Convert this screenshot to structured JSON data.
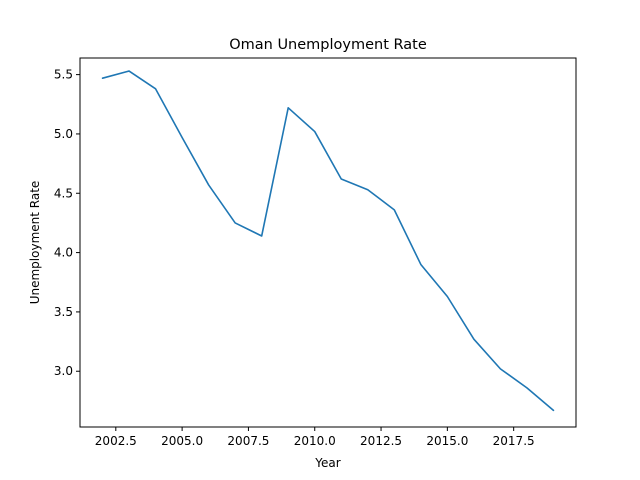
{
  "chart_data": {
    "type": "line",
    "title": "Oman Unemployment Rate",
    "xlabel": "Year",
    "ylabel": "Unemployment Rate",
    "xlim": [
      2001.15,
      2019.85
    ],
    "ylim": [
      2.53,
      5.64
    ],
    "xticks": [
      2002.5,
      2005.0,
      2007.5,
      2010.0,
      2012.5,
      2015.0,
      2017.5
    ],
    "xtick_labels": [
      "2002.5",
      "2005.0",
      "2007.5",
      "2010.0",
      "2012.5",
      "2015.0",
      "2017.5"
    ],
    "yticks": [
      3.0,
      3.5,
      4.0,
      4.5,
      5.0,
      5.5
    ],
    "ytick_labels": [
      "3.0",
      "3.5",
      "4.0",
      "4.5",
      "5.0",
      "5.5"
    ],
    "grid": false,
    "x": [
      2002,
      2003,
      2004,
      2005,
      2006,
      2007,
      2008,
      2009,
      2010,
      2011,
      2012,
      2013,
      2014,
      2015,
      2016,
      2017,
      2018,
      2019
    ],
    "series": [
      {
        "values": [
          5.47,
          5.53,
          5.38,
          4.97,
          4.57,
          4.25,
          4.14,
          5.22,
          5.02,
          4.62,
          4.53,
          4.36,
          3.9,
          3.63,
          3.27,
          3.02,
          2.86,
          2.67
        ],
        "color": "#1f77b4"
      }
    ]
  }
}
